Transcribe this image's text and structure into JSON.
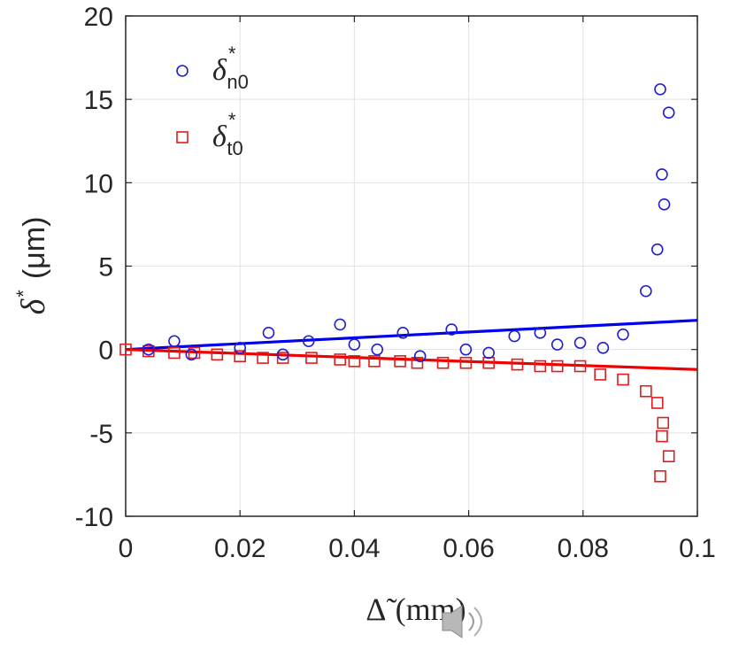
{
  "chart_data": {
    "type": "scatter",
    "title": "",
    "xlabel": "Δ̃ (mm)",
    "xlabel_symbol": "Δ̃",
    "xlabel_unit": "(mm)",
    "ylabel_symbol": "δ",
    "ylabel_sup": "*",
    "ylabel_unit": "(μm)",
    "xlim": [
      0,
      0.1
    ],
    "ylim": [
      -10,
      20
    ],
    "xticks": [
      0,
      0.02,
      0.04,
      0.06,
      0.08,
      0.1
    ],
    "xtick_labels": [
      "0",
      "0.02",
      "0.04",
      "0.06",
      "0.08",
      "0.1"
    ],
    "yticks": [
      -10,
      -5,
      0,
      5,
      10,
      15,
      20
    ],
    "ytick_labels": [
      "-10",
      "-5",
      "0",
      "5",
      "10",
      "15",
      "20"
    ],
    "grid": true,
    "legend_position": "top-left",
    "series": [
      {
        "name": "δ*n0",
        "legend_main": "δ",
        "legend_sup": "*",
        "legend_sub": "n0",
        "marker": "circle",
        "color": "#1f1fd0",
        "x": [
          0.004,
          0.0085,
          0.0115,
          0.02,
          0.025,
          0.0275,
          0.032,
          0.0375,
          0.04,
          0.044,
          0.0485,
          0.0515,
          0.057,
          0.0595,
          0.0635,
          0.068,
          0.0725,
          0.0755,
          0.0795,
          0.0835,
          0.087,
          0.091,
          0.093,
          0.0935,
          0.0938,
          0.0942,
          0.095
        ],
        "y": [
          0.0,
          0.5,
          -0.3,
          0.1,
          1.0,
          -0.3,
          0.5,
          1.5,
          0.3,
          0.0,
          1.0,
          -0.4,
          1.2,
          0.0,
          -0.2,
          0.8,
          1.0,
          0.3,
          0.4,
          0.1,
          0.9,
          3.5,
          6.0,
          15.6,
          10.5,
          8.7,
          14.2
        ],
        "fit": {
          "x": [
            0,
            0.1
          ],
          "y": [
            0,
            1.75
          ],
          "color": "#0000ee"
        }
      },
      {
        "name": "δ*t0",
        "legend_main": "δ",
        "legend_sup": "*",
        "legend_sub": "t0",
        "marker": "square",
        "color": "#e01c1c",
        "x": [
          0.0,
          0.004,
          0.0085,
          0.012,
          0.016,
          0.02,
          0.024,
          0.0275,
          0.0325,
          0.0375,
          0.04,
          0.0435,
          0.048,
          0.051,
          0.0555,
          0.0595,
          0.0635,
          0.0685,
          0.0725,
          0.0755,
          0.0795,
          0.083,
          0.087,
          0.091,
          0.093,
          0.0935,
          0.0938,
          0.094,
          0.095
        ],
        "y": [
          0.0,
          -0.1,
          -0.2,
          -0.2,
          -0.3,
          -0.4,
          -0.5,
          -0.5,
          -0.5,
          -0.6,
          -0.7,
          -0.7,
          -0.7,
          -0.8,
          -0.8,
          -0.8,
          -0.8,
          -0.9,
          -1.0,
          -1.0,
          -1.0,
          -1.5,
          -1.8,
          -2.5,
          -3.2,
          -7.6,
          -5.2,
          -4.4,
          -6.4
        ],
        "fit": {
          "x": [
            0,
            0.1
          ],
          "y": [
            0,
            -1.2
          ],
          "color": "#ee0000"
        }
      }
    ]
  },
  "speaker_icon": "speaker-icon"
}
